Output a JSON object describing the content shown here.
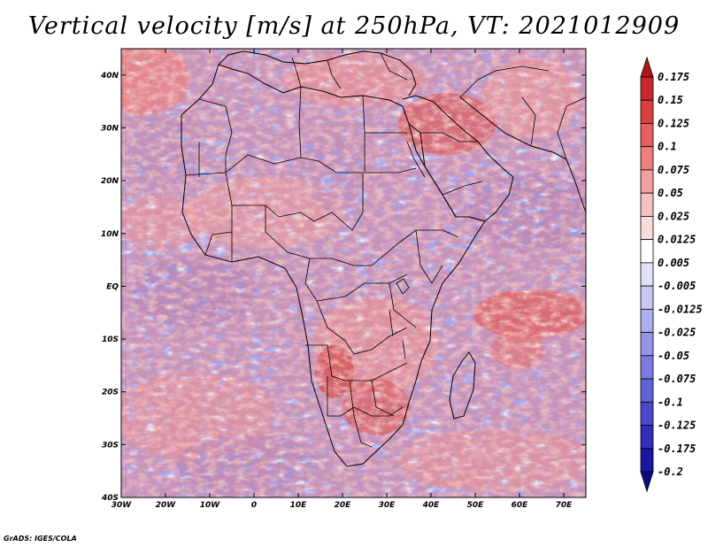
{
  "title": "Vertical velocity [m/s] at 250hPa, VT: 2021012909",
  "footer": "GrADS: IGES/COLA",
  "map": {
    "lat_labels": [
      "40N",
      "30N",
      "20N",
      "10N",
      "EQ",
      "10S",
      "20S",
      "30S",
      "40S"
    ],
    "lon_labels": [
      "30W",
      "20W",
      "10W",
      "0",
      "10E",
      "20E",
      "30E",
      "40E",
      "50E",
      "60E",
      "70E"
    ],
    "lat_range": [
      -40,
      45
    ],
    "lon_range": [
      -30,
      75
    ]
  },
  "colorbar": {
    "labels": [
      "0.175",
      "0.15",
      "0.125",
      "0.1",
      "0.075",
      "0.05",
      "0.025",
      "0.0125",
      "0.005",
      "-0.005",
      "-0.0125",
      "-0.025",
      "-0.05",
      "-0.075",
      "-0.1",
      "-0.125",
      "-0.175",
      "-0.2"
    ],
    "colors": [
      "#b3141c",
      "#c8282c",
      "#d94141",
      "#e55f5f",
      "#ed7f7f",
      "#f2a0a0",
      "#f6c0c0",
      "#fadcdc",
      "#ffffff",
      "#e2e2fa",
      "#c7c7f3",
      "#aeaeee",
      "#9595e8",
      "#7c7ce0",
      "#6262d6",
      "#4848c8",
      "#2e2eb8",
      "#1818a0",
      "#0a0a88"
    ]
  }
}
